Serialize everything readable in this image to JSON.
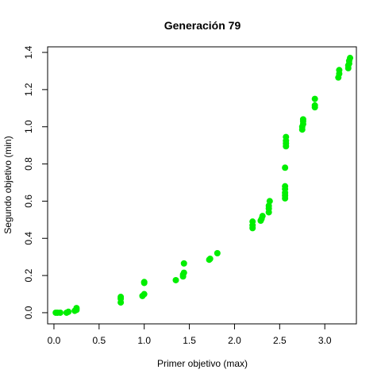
{
  "chart_data": {
    "type": "scatter",
    "title": "Generación 79",
    "xlabel": "Primer objetivo (max)",
    "ylabel": "Segundo objetivo (min)",
    "xlim": [
      -0.07,
      3.35
    ],
    "ylim": [
      -0.06,
      1.43
    ],
    "x_ticks": [
      0.0,
      0.5,
      1.0,
      1.5,
      2.0,
      2.5,
      3.0
    ],
    "x_tick_labels": [
      "0.0",
      "0.5",
      "1.0",
      "1.5",
      "2.0",
      "2.5",
      "3.0"
    ],
    "y_ticks": [
      0.0,
      0.2,
      0.4,
      0.6,
      0.8,
      1.0,
      1.2,
      1.4
    ],
    "y_tick_labels": [
      "0.0",
      "0.2",
      "0.4",
      "0.6",
      "0.8",
      "1.0",
      "1.2",
      "1.4"
    ],
    "grid": false,
    "point_color": "#00ee00",
    "points": [
      [
        0.02,
        0.0
      ],
      [
        0.04,
        0.0
      ],
      [
        0.07,
        0.0
      ],
      [
        0.14,
        0.0
      ],
      [
        0.16,
        0.005
      ],
      [
        0.23,
        0.01
      ],
      [
        0.25,
        0.015
      ],
      [
        0.25,
        0.025
      ],
      [
        0.74,
        0.055
      ],
      [
        0.74,
        0.075
      ],
      [
        0.74,
        0.085
      ],
      [
        0.98,
        0.09
      ],
      [
        1.0,
        0.1
      ],
      [
        1.0,
        0.16
      ],
      [
        1.0,
        0.165
      ],
      [
        1.35,
        0.175
      ],
      [
        1.43,
        0.195
      ],
      [
        1.43,
        0.205
      ],
      [
        1.44,
        0.215
      ],
      [
        1.44,
        0.265
      ],
      [
        1.72,
        0.285
      ],
      [
        1.73,
        0.29
      ],
      [
        1.81,
        0.32
      ],
      [
        2.2,
        0.455
      ],
      [
        2.2,
        0.47
      ],
      [
        2.2,
        0.49
      ],
      [
        2.29,
        0.495
      ],
      [
        2.3,
        0.505
      ],
      [
        2.31,
        0.52
      ],
      [
        2.38,
        0.54
      ],
      [
        2.38,
        0.56
      ],
      [
        2.38,
        0.575
      ],
      [
        2.39,
        0.6
      ],
      [
        2.56,
        0.615
      ],
      [
        2.56,
        0.63
      ],
      [
        2.56,
        0.645
      ],
      [
        2.56,
        0.665
      ],
      [
        2.56,
        0.68
      ],
      [
        2.56,
        0.78
      ],
      [
        2.57,
        0.895
      ],
      [
        2.57,
        0.91
      ],
      [
        2.57,
        0.925
      ],
      [
        2.57,
        0.945
      ],
      [
        2.75,
        0.985
      ],
      [
        2.75,
        1.0
      ],
      [
        2.76,
        1.015
      ],
      [
        2.76,
        1.03
      ],
      [
        2.76,
        1.04
      ],
      [
        2.89,
        1.105
      ],
      [
        2.89,
        1.115
      ],
      [
        2.89,
        1.15
      ],
      [
        3.15,
        1.265
      ],
      [
        3.16,
        1.285
      ],
      [
        3.16,
        1.305
      ],
      [
        3.26,
        1.315
      ],
      [
        3.26,
        1.33
      ],
      [
        3.27,
        1.34
      ],
      [
        3.27,
        1.355
      ],
      [
        3.28,
        1.37
      ]
    ]
  }
}
